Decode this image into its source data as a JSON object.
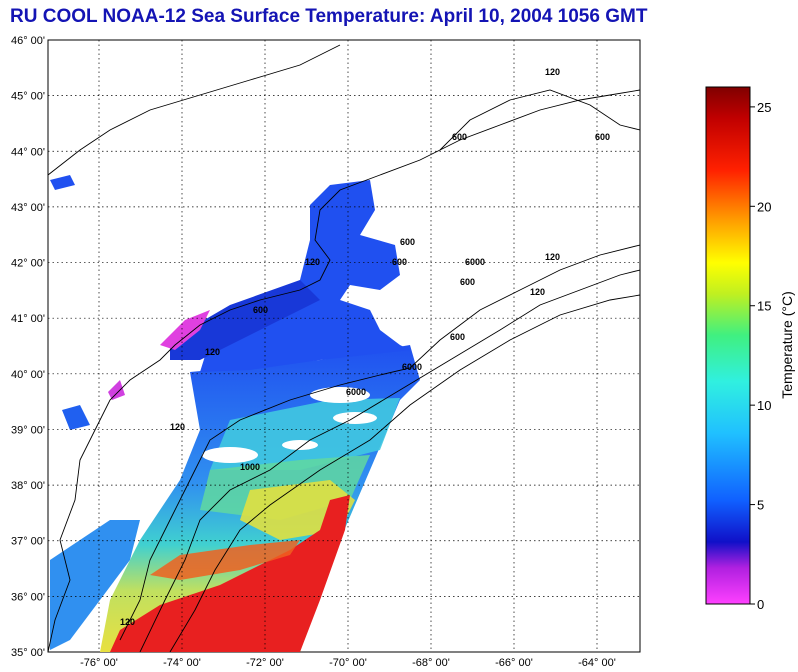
{
  "title": "RU COOL  NOAA-12  Sea Surface Temperature:  April 10, 2004 1056 GMT",
  "map": {
    "latitudes": [
      "46° 00'",
      "45° 00'",
      "44° 00'",
      "43° 00'",
      "42° 00'",
      "41° 00'",
      "40° 00'",
      "39° 00'",
      "38° 00'",
      "37° 00'",
      "36° 00'",
      "35° 00'"
    ],
    "longitudes": [
      "-76° 00'",
      "-74° 00'",
      "-72° 00'",
      "-70° 00'",
      "-68° 00'",
      "-66° 00'",
      "-64° 00'"
    ],
    "contour_labels": [
      "120",
      "600",
      "600",
      "600",
      "600",
      "6000",
      "120",
      "120",
      "120",
      "600",
      "6000",
      "6000",
      "600",
      "120",
      "600",
      "120",
      "1000",
      "120"
    ]
  },
  "colorbar": {
    "title": "Temperature (°C)",
    "ticks": [
      "25",
      "20",
      "15",
      "10",
      "5",
      "0"
    ],
    "range": [
      0,
      26
    ]
  },
  "colors": {
    "title": "#1414b4",
    "warm": "#e82020",
    "cool": "#2040f0",
    "mid": "#30e0e0"
  }
}
